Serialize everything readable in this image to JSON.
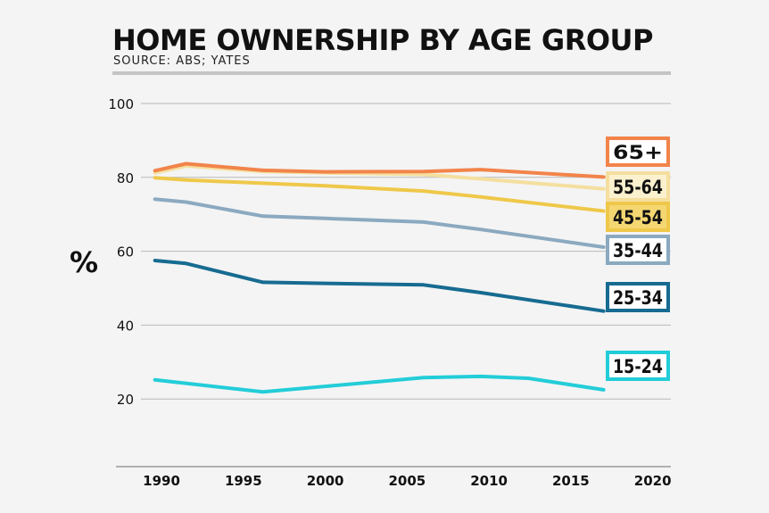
{
  "title": "HOME OWNERSHIP BY AGE GROUP",
  "subtitle": "SOURCE: ABS; YATES",
  "colors": {
    "background": "#f4f4f4",
    "grid": "#b8b8b8",
    "axis": "#999999",
    "text": "#111111"
  },
  "chart_data": {
    "type": "line",
    "ylabel": "%",
    "xlim": [
      1987,
      2021
    ],
    "ylim": [
      0,
      100
    ],
    "x_ticks": [
      1990,
      1995,
      2000,
      2005,
      2010,
      2015,
      2020
    ],
    "y_ticks": [
      20,
      40,
      60,
      80,
      100
    ],
    "grid": true,
    "legend": "right, inline end labels",
    "series": [
      {
        "name": "65+",
        "color": "#f2844a",
        "label_fill": "#ffffff",
        "x": [
          1989.6,
          1991.5,
          1996.2,
          2000,
          2006,
          2009.5,
          2017
        ],
        "y": [
          81.8,
          83.7,
          81.9,
          81.5,
          81.6,
          82.1,
          80.1
        ]
      },
      {
        "name": "55-64",
        "color": "#f5df9f",
        "label_fill": "#fbf1cf",
        "x": [
          1989.6,
          1991.5,
          1996.2,
          2000,
          2006,
          2009.5,
          2017
        ],
        "y": [
          81.2,
          83.1,
          81.6,
          81.2,
          80.8,
          79.6,
          76.9
        ]
      },
      {
        "name": "45-54",
        "color": "#efc84a",
        "label_fill": "#f5d772",
        "x": [
          1989.6,
          1991.5,
          1996.2,
          2000,
          2006,
          2009.5,
          2017
        ],
        "y": [
          79.9,
          79.3,
          78.4,
          77.7,
          76.3,
          74.7,
          70.9
        ]
      },
      {
        "name": "35-44",
        "color": "#8ba9c0",
        "label_fill": "#ffffff",
        "x": [
          1989.6,
          1991.5,
          1996.2,
          2000,
          2006,
          2009.5,
          2017
        ],
        "y": [
          74.1,
          73.3,
          69.5,
          68.9,
          67.9,
          65.9,
          61.1
        ]
      },
      {
        "name": "25-34",
        "color": "#176b91",
        "label_fill": "#ffffff",
        "x": [
          1989.6,
          1991.5,
          1996.2,
          2000,
          2006,
          2009.5,
          2017
        ],
        "y": [
          57.5,
          56.7,
          51.6,
          51.3,
          50.9,
          48.8,
          43.8
        ]
      },
      {
        "name": "15-24",
        "color": "#22cdd8",
        "label_fill": "#ffffff",
        "x": [
          1989.6,
          1996.2,
          2006,
          2009.5,
          2012.4,
          2017
        ],
        "y": [
          25.2,
          21.9,
          25.8,
          26.1,
          25.6,
          22.5
        ]
      }
    ]
  }
}
